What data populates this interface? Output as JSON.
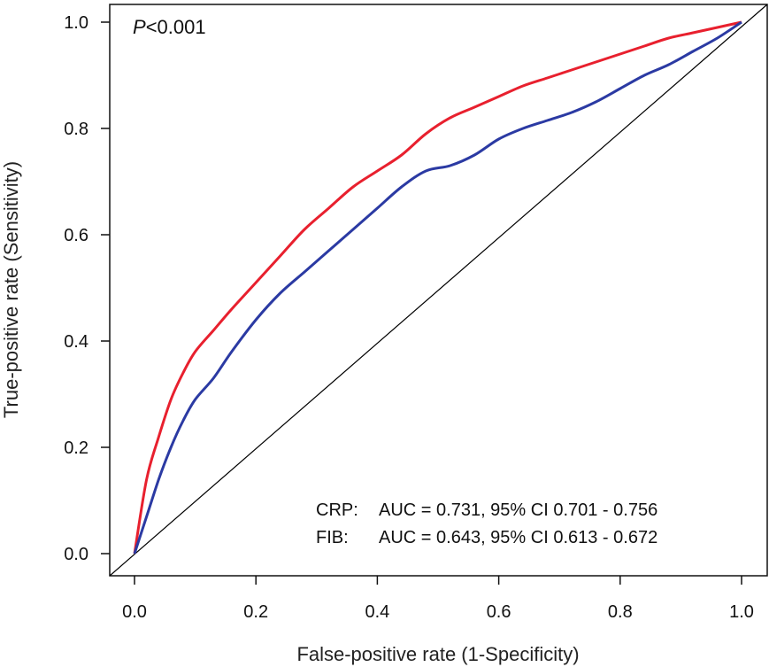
{
  "chart_data": {
    "type": "line",
    "xlabel": "False-positive rate (1-Specificity)",
    "ylabel": "True-positive rate (Sensitivity)",
    "xlim": [
      0.0,
      1.0
    ],
    "ylim": [
      0.0,
      1.0
    ],
    "xticks": [
      "0.0",
      "0.2",
      "0.4",
      "0.6",
      "0.8",
      "1.0"
    ],
    "yticks": [
      "0.0",
      "0.2",
      "0.4",
      "0.6",
      "0.8",
      "1.0"
    ],
    "grid": false,
    "annotation_p": {
      "italic": "P",
      "rest": "<0.001"
    },
    "annotations": [
      {
        "label": "CRP:",
        "text": "AUC = 0.731, 95% CI 0.701 - 0.756"
      },
      {
        "label": "FIB:",
        "text": "AUC = 0.643, 95% CI 0.613 - 0.672"
      }
    ],
    "diagonal": {
      "x": [
        0,
        1
      ],
      "y": [
        0,
        1
      ],
      "color": "#000000"
    },
    "series": [
      {
        "color": "#e8202e",
        "x": [
          0.0,
          0.02,
          0.04,
          0.06,
          0.08,
          0.1,
          0.13,
          0.16,
          0.2,
          0.24,
          0.28,
          0.32,
          0.36,
          0.4,
          0.44,
          0.48,
          0.52,
          0.56,
          0.6,
          0.64,
          0.68,
          0.72,
          0.76,
          0.8,
          0.84,
          0.88,
          0.92,
          0.96,
          1.0
        ],
        "y": [
          0.0,
          0.14,
          0.22,
          0.29,
          0.34,
          0.38,
          0.42,
          0.46,
          0.51,
          0.56,
          0.61,
          0.65,
          0.69,
          0.72,
          0.75,
          0.79,
          0.82,
          0.84,
          0.86,
          0.88,
          0.895,
          0.91,
          0.925,
          0.94,
          0.955,
          0.97,
          0.98,
          0.99,
          1.0
        ]
      },
      {
        "color": "#2b3aa3",
        "x": [
          0.0,
          0.02,
          0.04,
          0.06,
          0.08,
          0.1,
          0.13,
          0.16,
          0.2,
          0.24,
          0.28,
          0.32,
          0.36,
          0.4,
          0.44,
          0.48,
          0.52,
          0.56,
          0.6,
          0.64,
          0.68,
          0.72,
          0.76,
          0.8,
          0.84,
          0.88,
          0.92,
          0.96,
          1.0
        ],
        "y": [
          0.0,
          0.07,
          0.14,
          0.2,
          0.25,
          0.29,
          0.33,
          0.38,
          0.44,
          0.49,
          0.53,
          0.57,
          0.61,
          0.65,
          0.69,
          0.72,
          0.73,
          0.75,
          0.78,
          0.8,
          0.815,
          0.83,
          0.85,
          0.875,
          0.9,
          0.92,
          0.945,
          0.97,
          1.0
        ]
      }
    ]
  }
}
